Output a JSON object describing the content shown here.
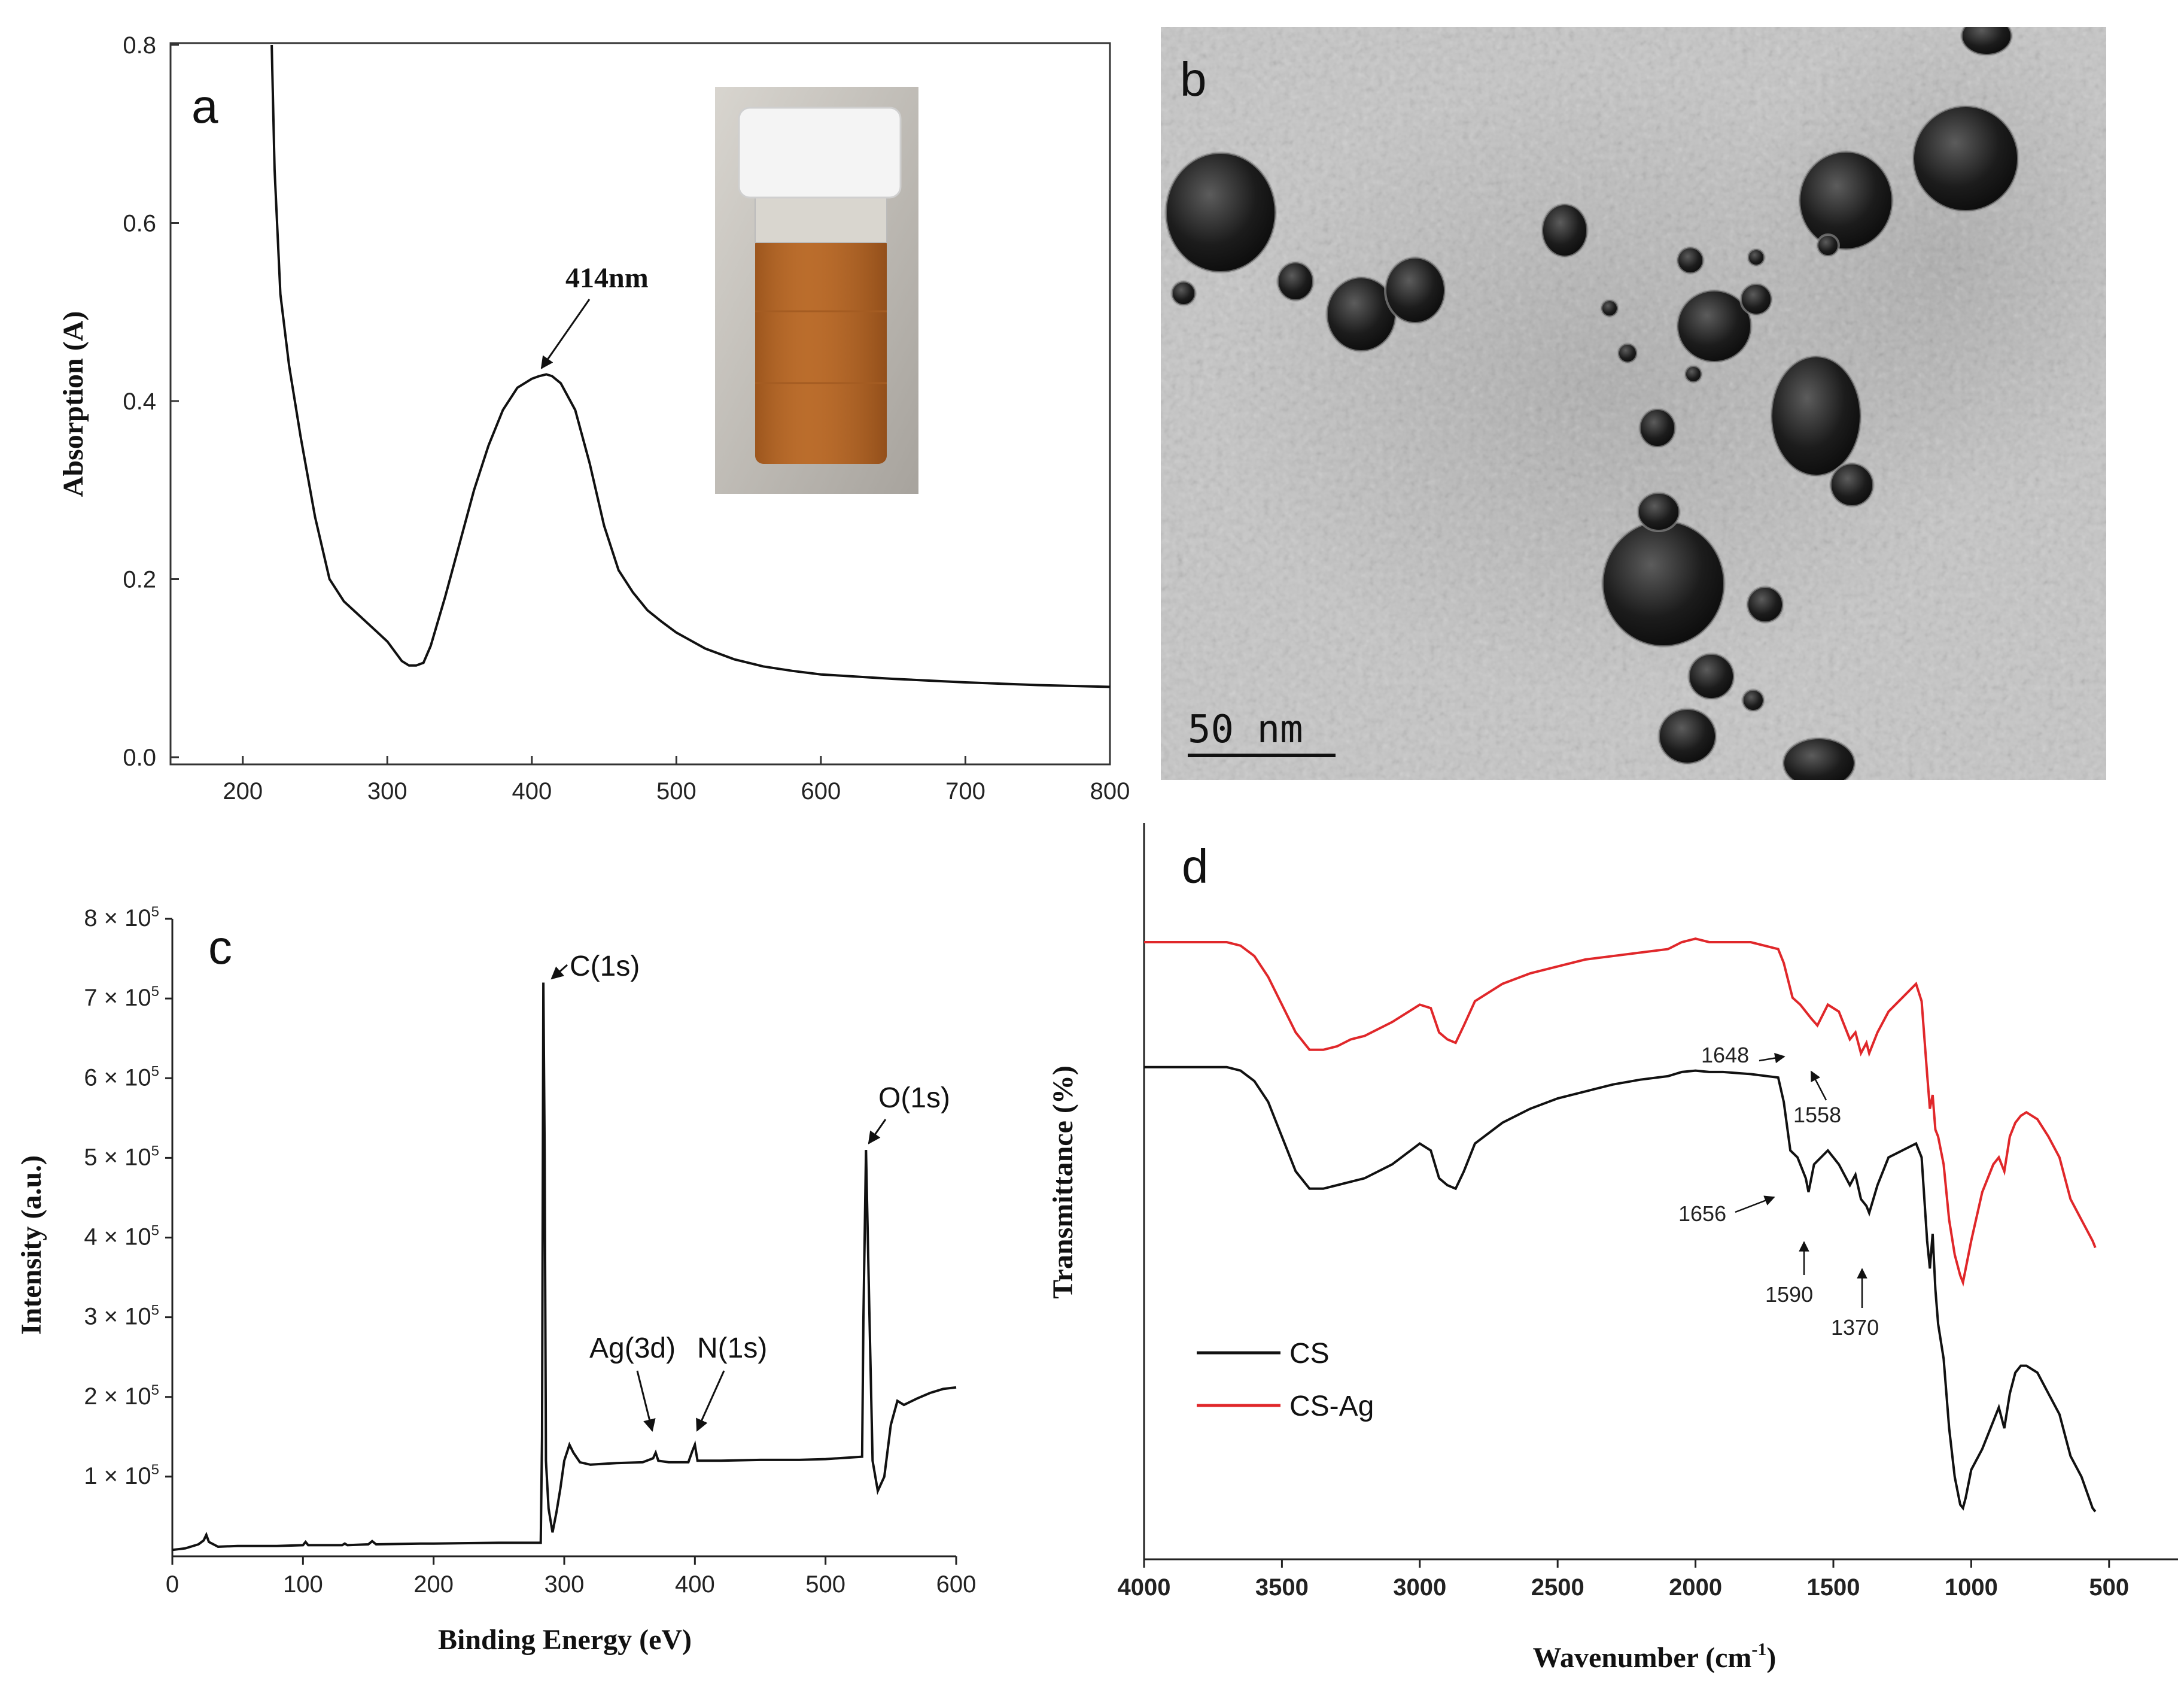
{
  "chart_data": [
    {
      "panel": "a",
      "type": "line",
      "title": "",
      "xlabel": "",
      "ylabel": "Absorption (A)",
      "xlim": [
        150,
        800
      ],
      "ylim": [
        0,
        0.8
      ],
      "xticks": [
        200,
        300,
        400,
        500,
        600,
        700,
        800
      ],
      "yticks": [
        0.0,
        0.2,
        0.4,
        0.6,
        0.8
      ],
      "ytick_labels": [
        "0.0",
        "0.2",
        "0.4",
        "0.6",
        "0.8"
      ],
      "series": [
        {
          "x": [
            220,
            222,
            226,
            232,
            240,
            250,
            260,
            270,
            280,
            290,
            300,
            310,
            315,
            320,
            325,
            330,
            340,
            350,
            360,
            370,
            380,
            390,
            400,
            405,
            410,
            414,
            420,
            430,
            440,
            450,
            460,
            470,
            480,
            490,
            500,
            520,
            540,
            560,
            580,
            600,
            650,
            700,
            750,
            800
          ],
          "y": [
            0.8,
            0.66,
            0.52,
            0.44,
            0.36,
            0.27,
            0.2,
            0.175,
            0.16,
            0.145,
            0.13,
            0.108,
            0.103,
            0.103,
            0.106,
            0.125,
            0.18,
            0.24,
            0.3,
            0.35,
            0.39,
            0.415,
            0.425,
            0.428,
            0.43,
            0.428,
            0.42,
            0.39,
            0.33,
            0.26,
            0.21,
            0.185,
            0.165,
            0.152,
            0.14,
            0.122,
            0.11,
            0.102,
            0.097,
            0.093,
            0.088,
            0.084,
            0.081,
            0.079
          ]
        }
      ],
      "annotations": [
        {
          "text": "414nm",
          "x": 414,
          "y": 0.43
        }
      ]
    },
    {
      "panel": "b",
      "type": "image",
      "scale_bar": "50 nm"
    },
    {
      "panel": "c",
      "type": "line",
      "title": "",
      "xlabel": "Binding Energy (eV)",
      "ylabel": "Intensity (a.u.)",
      "xlim": [
        0,
        600
      ],
      "ylim": [
        0,
        800000
      ],
      "xticks": [
        0,
        100,
        200,
        300,
        400,
        500,
        600
      ],
      "yticks": [
        100000,
        200000,
        300000,
        400000,
        500000,
        600000,
        700000,
        800000
      ],
      "ytick_mantissa": [
        "1",
        "2",
        "3",
        "4",
        "5",
        "6",
        "7",
        "8"
      ],
      "ytick_times": "× 10",
      "ytick_exp": "5",
      "series": [
        {
          "x": [
            0,
            10,
            20,
            24,
            26,
            28,
            35,
            50,
            80,
            100,
            102,
            104,
            130,
            132,
            134,
            150,
            153,
            156,
            190,
            200,
            250,
            282,
            283,
            284,
            285,
            286,
            288,
            291,
            294,
            297,
            300,
            304,
            307,
            312,
            320,
            340,
            360,
            368,
            370,
            372,
            380,
            395,
            398,
            400,
            402,
            420,
            450,
            480,
            500,
            528,
            529,
            531,
            533,
            536,
            540,
            545,
            550,
            555,
            560,
            570,
            580,
            590,
            600
          ],
          "y": [
            8000,
            10000,
            15000,
            20000,
            27000,
            18000,
            12000,
            13000,
            13000,
            14000,
            18000,
            14000,
            14000,
            16000,
            14000,
            15000,
            19000,
            15000,
            16000,
            16000,
            17000,
            17000,
            150000,
            720000,
            500000,
            120000,
            60000,
            30000,
            55000,
            85000,
            120000,
            140000,
            130000,
            118000,
            115000,
            117000,
            118000,
            123000,
            130000,
            120000,
            118000,
            118000,
            132000,
            140000,
            120000,
            120000,
            121000,
            121000,
            122000,
            125000,
            300000,
            510000,
            350000,
            120000,
            82000,
            100000,
            165000,
            195000,
            190000,
            198000,
            205000,
            210000,
            212000
          ]
        }
      ],
      "annotations": [
        {
          "text": "C(1s)",
          "x": 284,
          "y": 720000
        },
        {
          "text": "O(1s)",
          "x": 531,
          "y": 510000
        },
        {
          "text": "Ag(3d)",
          "x": 368,
          "y": 123000
        },
        {
          "text": "N(1s)",
          "x": 400,
          "y": 140000
        }
      ]
    },
    {
      "panel": "d",
      "type": "line",
      "title": "",
      "xlabel": "Wavenumber (cm",
      "xlabel_sup": "-1",
      "xlabel_end": ")",
      "ylabel": "Transmittance (%)",
      "xlim": [
        4000,
        250
      ],
      "ylim": [
        0,
        100
      ],
      "xticks": [
        4000,
        3500,
        3000,
        2500,
        2000,
        1500,
        1000,
        500
      ],
      "legend": {
        "position": "bottom-left"
      },
      "series": [
        {
          "name": "CS",
          "color": "#111111",
          "x": [
            4000,
            3800,
            3700,
            3650,
            3600,
            3550,
            3500,
            3450,
            3400,
            3350,
            3300,
            3250,
            3200,
            3100,
            3000,
            2960,
            2930,
            2900,
            2870,
            2840,
            2800,
            2700,
            2600,
            2500,
            2400,
            2300,
            2200,
            2100,
            2050,
            2000,
            1950,
            1900,
            1800,
            1700,
            1680,
            1656,
            1630,
            1600,
            1590,
            1570,
            1520,
            1480,
            1440,
            1420,
            1400,
            1380,
            1370,
            1340,
            1300,
            1250,
            1200,
            1180,
            1160,
            1150,
            1140,
            1130,
            1120,
            1100,
            1080,
            1060,
            1040,
            1030,
            1020,
            1000,
            960,
            920,
            900,
            880,
            860,
            840,
            820,
            800,
            760,
            720,
            680,
            640,
            600,
            560,
            550
          ],
          "y": [
            67,
            67,
            67,
            66.5,
            65,
            62,
            57,
            52,
            49.5,
            49.5,
            50,
            50.5,
            51,
            53,
            56,
            55,
            51,
            50,
            49.5,
            52,
            56,
            59,
            61,
            62.5,
            63.5,
            64.5,
            65.2,
            65.7,
            66.3,
            66.5,
            66.3,
            66.3,
            66,
            65.5,
            62,
            55,
            54,
            51,
            49,
            53,
            55,
            53,
            50,
            51.5,
            48,
            47,
            46,
            50,
            54,
            55,
            56,
            54,
            42,
            38,
            43,
            35,
            30,
            25,
            15,
            8,
            4,
            3.5,
            5,
            9,
            12,
            16,
            18,
            15,
            20,
            23,
            24,
            24,
            23,
            20,
            17,
            11,
            8,
            3.5,
            3
          ]
        },
        {
          "name": "CS-Ag",
          "color": "#e0272a",
          "x": [
            4000,
            3800,
            3700,
            3650,
            3600,
            3550,
            3500,
            3450,
            3400,
            3350,
            3300,
            3250,
            3200,
            3100,
            3000,
            2960,
            2930,
            2900,
            2870,
            2840,
            2800,
            2700,
            2600,
            2500,
            2400,
            2300,
            2200,
            2100,
            2050,
            2000,
            1950,
            1900,
            1800,
            1700,
            1680,
            1648,
            1620,
            1600,
            1580,
            1558,
            1520,
            1480,
            1440,
            1420,
            1400,
            1380,
            1370,
            1340,
            1300,
            1250,
            1200,
            1180,
            1160,
            1150,
            1140,
            1130,
            1120,
            1100,
            1080,
            1060,
            1040,
            1030,
            1020,
            1000,
            960,
            920,
            900,
            880,
            860,
            840,
            820,
            800,
            760,
            720,
            680,
            640,
            600,
            560,
            550
          ],
          "y": [
            85,
            85,
            85,
            84.5,
            83,
            80,
            76,
            72,
            69.5,
            69.5,
            70,
            71,
            71.5,
            73.5,
            76,
            75.5,
            72,
            71,
            70.5,
            73,
            76.5,
            79,
            80.5,
            81.5,
            82.5,
            83,
            83.5,
            84,
            85,
            85.5,
            85,
            85,
            85,
            84,
            82,
            77,
            76,
            75,
            74,
            73,
            76,
            75,
            71,
            72,
            69,
            70.5,
            69,
            72,
            75,
            77,
            79,
            76.5,
            66,
            61,
            63,
            58,
            57,
            53,
            45,
            40,
            37,
            36,
            38,
            42,
            49,
            53,
            54,
            52,
            57,
            59,
            60,
            60.5,
            59.5,
            57,
            54,
            48,
            45,
            42,
            41
          ]
        }
      ],
      "annotations": [
        {
          "text": "1648",
          "x": 1648,
          "series": "CS-Ag"
        },
        {
          "text": "1558",
          "x": 1558,
          "series": "CS-Ag"
        },
        {
          "text": "1656",
          "x": 1656,
          "series": "CS"
        },
        {
          "text": "1590",
          "x": 1590,
          "series": "CS"
        },
        {
          "text": "1370",
          "x": 1370,
          "series": "CS"
        }
      ]
    }
  ],
  "panel_labels": [
    "a",
    "b",
    "c",
    "d"
  ],
  "colors": {
    "cs": "#111111",
    "cs_ag": "#e0272a",
    "liquid": "#b86a2a",
    "cap": "#f4f4f4"
  }
}
